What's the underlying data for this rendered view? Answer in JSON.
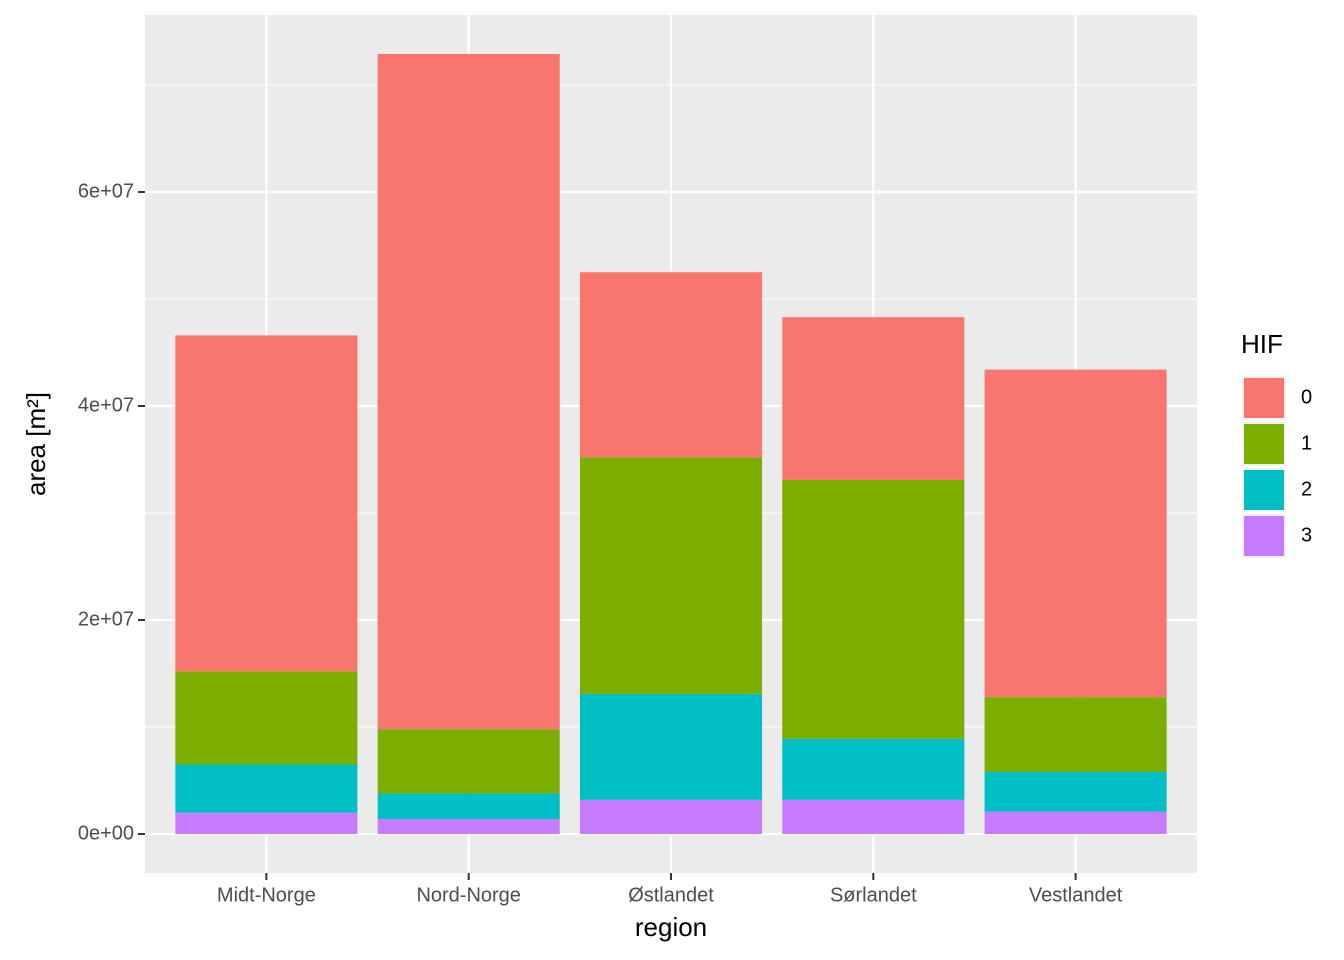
{
  "chart_data": {
    "type": "stacked_bar",
    "x_label": "region",
    "y_label": "area [m²]",
    "legend_title": "HIF",
    "categories": [
      "Midt-Norge",
      "Nord-Norge",
      "Østlandet",
      "Sørlandet",
      "Vestlandet"
    ],
    "series": [
      {
        "name": "0",
        "color": "#F8766D",
        "values": [
          31400000,
          63100000,
          17300000,
          15200000,
          30600000
        ]
      },
      {
        "name": "1",
        "color": "#7CAE00",
        "values": [
          8700000,
          6000000,
          22100000,
          24200000,
          7000000
        ]
      },
      {
        "name": "2",
        "color": "#00BFC4",
        "values": [
          4500000,
          2400000,
          9900000,
          5700000,
          3700000
        ]
      },
      {
        "name": "3",
        "color": "#C77CFF",
        "values": [
          2000000,
          1400000,
          3200000,
          3200000,
          2100000
        ]
      }
    ],
    "ylim": [
      -3640000,
      76540000
    ],
    "yticks": [
      {
        "value": 0,
        "label": "0e+00"
      },
      {
        "value": 20000000,
        "label": "2e+07"
      },
      {
        "value": 40000000,
        "label": "4e+07"
      },
      {
        "value": 60000000,
        "label": "6e+07"
      }
    ],
    "grid": true,
    "legend": "right"
  }
}
